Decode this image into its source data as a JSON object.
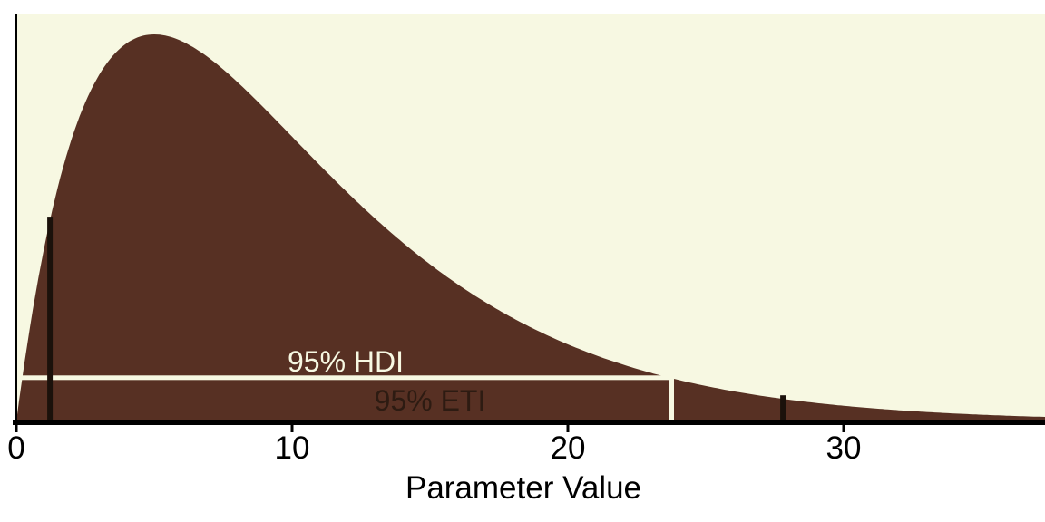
{
  "figure": {
    "xlabel": "Parameter Value",
    "x_tick_labels": [
      "0",
      "10",
      "20",
      "30"
    ]
  },
  "chart_data": {
    "type": "area",
    "title": "",
    "xlabel": "Parameter Value",
    "ylabel": "",
    "grid": false,
    "legend": false,
    "x_range": [
      0,
      37.3
    ],
    "x_ticks": [
      0,
      10,
      20,
      30
    ],
    "density_curve": {
      "family": "gamma",
      "shape": 2,
      "scale": 5,
      "mode": 5,
      "sampled_relative_density": {
        "x": [
          0,
          1,
          2,
          3,
          4,
          5,
          6,
          7,
          8,
          9,
          10,
          11,
          12,
          13,
          14,
          15,
          16,
          17,
          18,
          19,
          20,
          21,
          22,
          23,
          24,
          25,
          26,
          27,
          28,
          29,
          30,
          31,
          32,
          33,
          34,
          35,
          36,
          37
        ],
        "y": [
          0,
          0.445,
          0.729,
          0.895,
          0.977,
          1.0,
          0.982,
          0.938,
          0.878,
          0.809,
          0.736,
          0.663,
          0.592,
          0.525,
          0.463,
          0.406,
          0.355,
          0.308,
          0.267,
          0.231,
          0.199,
          0.171,
          0.147,
          0.126,
          0.107,
          0.092,
          0.078,
          0.066,
          0.056,
          0.048,
          0.04,
          0.034,
          0.029,
          0.024,
          0.021,
          0.017,
          0.015,
          0.012
        ]
      }
    },
    "intervals": [
      {
        "name": "95% HDI",
        "lower": 0.1,
        "upper": 23.75,
        "style": "cream-line"
      },
      {
        "name": "95% ETI",
        "lower": 1.22,
        "upper": 27.8,
        "style": "black-ticks"
      }
    ],
    "interval_label_centers": {
      "hdi_x": 11.95,
      "eti_x": 15.0
    },
    "colors": {
      "plot_background": "#f7f8e2",
      "density_fill": "#573023",
      "hdi_line": "#f7f8e2",
      "eti_tick": "#1b110b",
      "eti_text": "#2d1b12",
      "axis": "#000000",
      "outer_background": "#ffffff"
    }
  }
}
